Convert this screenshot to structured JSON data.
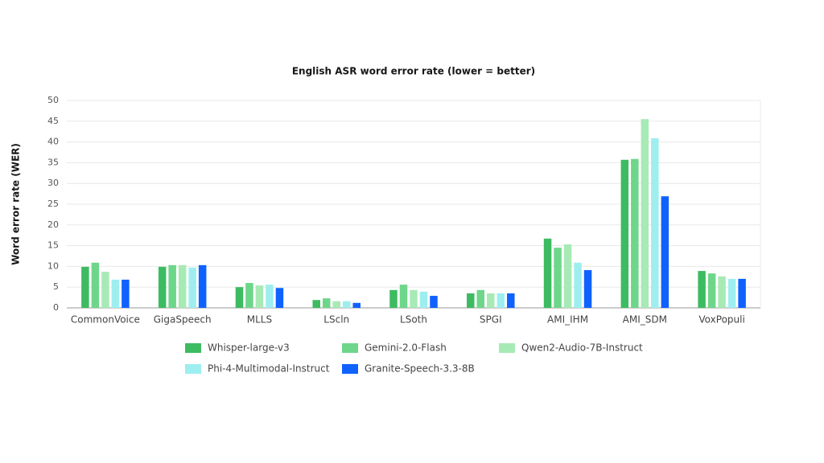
{
  "chart_data": {
    "type": "bar",
    "title": "English ASR word error rate (lower = better)",
    "ylabel": "Word error rate (WER)",
    "categories": [
      "CommonVoice",
      "GigaSpeech",
      "MLLS",
      "LScln",
      "LSoth",
      "SPGI",
      "AMI_IHM",
      "AMI_SDM",
      "VoxPopuli"
    ],
    "series": [
      {
        "name": "Whisper-large-v3",
        "color": "#3dbb61",
        "values": [
          9.9,
          9.9,
          5.0,
          1.9,
          4.3,
          3.5,
          16.7,
          35.7,
          8.9
        ]
      },
      {
        "name": "Gemini-2.0-Flash",
        "color": "#6ed68a",
        "values": [
          10.9,
          10.3,
          6.0,
          2.3,
          5.6,
          4.3,
          14.5,
          35.9,
          8.3
        ]
      },
      {
        "name": "Qwen2-Audio-7B-Instruct",
        "color": "#a7eab5",
        "values": [
          8.7,
          10.3,
          5.4,
          1.6,
          4.3,
          3.5,
          15.3,
          45.5,
          7.6
        ]
      },
      {
        "name": "Phi-4-Multimodal-Instruct",
        "color": "#9eeef0",
        "values": [
          6.8,
          9.7,
          5.6,
          1.6,
          3.9,
          3.5,
          10.9,
          40.9,
          7.0
        ]
      },
      {
        "name": "Granite-Speech-3.3-8B",
        "color": "#0f62fe",
        "values": [
          6.8,
          10.3,
          4.8,
          1.2,
          2.9,
          3.5,
          9.1,
          26.9,
          7.0
        ]
      }
    ],
    "ylim": [
      0,
      50
    ],
    "yticks": [
      0,
      5,
      10,
      15,
      20,
      25,
      30,
      35,
      40,
      45,
      50
    ],
    "grid": true,
    "legend": "bottom"
  }
}
